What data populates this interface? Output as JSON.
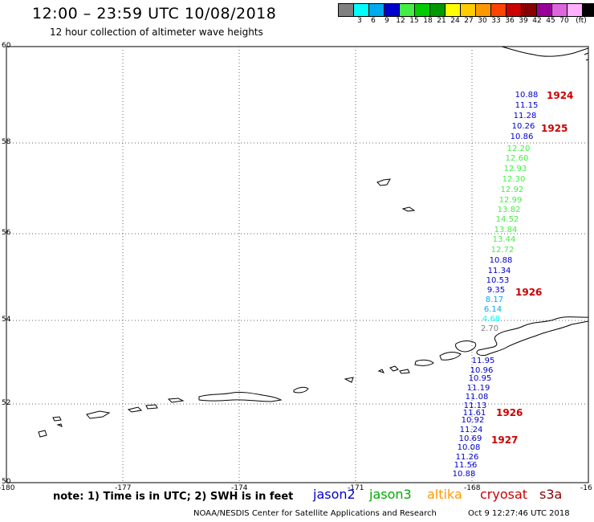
{
  "header": {
    "title": "12:00 – 23:59 UTC 10/08/2018",
    "subtitle": "12 hour collection of altimeter wave heights"
  },
  "colorbar": {
    "swatches": [
      "#808080",
      "#00ffff",
      "#00aaee",
      "#0000cc",
      "#44ee44",
      "#00cc00",
      "#009900",
      "#ffff00",
      "#ffcc00",
      "#ff9900",
      "#ff4400",
      "#cc0000",
      "#880000",
      "#990099",
      "#dd66dd",
      "#ffb0ff",
      "#000000"
    ],
    "labels": [
      "3",
      "6",
      "9",
      "12",
      "15",
      "18",
      "21",
      "24",
      "27",
      "30",
      "33",
      "36",
      "39",
      "42",
      "45",
      "70",
      "(ft)"
    ]
  },
  "map": {
    "lon_ticks": [
      "-180",
      "-177",
      "-174",
      "-171",
      "-168",
      "-16"
    ],
    "lat_ticks": [
      "60",
      "58",
      "56",
      "54",
      "52",
      "50"
    ],
    "colors": {
      "jason2": "#0000cc",
      "jason3": "#00aa00",
      "altika": "#ff9900",
      "cryosat": "#cc0000",
      "s3a": "#880000",
      "coast": "#000000",
      "grid": "#666666"
    }
  },
  "track_readings": [
    {
      "v": "10.88",
      "c": "#0000cc"
    },
    {
      "v": "11.15",
      "c": "#0000cc"
    },
    {
      "v": "11.28",
      "c": "#0000cc"
    },
    {
      "v": "10.26",
      "c": "#0000cc"
    },
    {
      "v": "10.86",
      "c": "#0000cc"
    },
    {
      "v": "12.20",
      "c": "#44ee44"
    },
    {
      "v": "12.60",
      "c": "#44ee44"
    },
    {
      "v": "12.93",
      "c": "#44ee44"
    },
    {
      "v": "12.30",
      "c": "#44ee44"
    },
    {
      "v": "12.92",
      "c": "#44ee44"
    },
    {
      "v": "12.99",
      "c": "#44ee44"
    },
    {
      "v": "13.82",
      "c": "#44ee44"
    },
    {
      "v": "14.52",
      "c": "#44ee44"
    },
    {
      "v": "13.84",
      "c": "#44ee44"
    },
    {
      "v": "13.44",
      "c": "#44ee44"
    },
    {
      "v": "12.72",
      "c": "#44ee44"
    },
    {
      "v": "10.88",
      "c": "#0000cc"
    },
    {
      "v": "11.34",
      "c": "#0000cc"
    },
    {
      "v": "10.53",
      "c": "#0000cc"
    },
    {
      "v": "9.35",
      "c": "#0000cc"
    },
    {
      "v": "8.17",
      "c": "#00aaee"
    },
    {
      "v": "6.14",
      "c": "#00aaee"
    },
    {
      "v": "4.68",
      "c": "#00ffff"
    },
    {
      "v": "2.70",
      "c": "#808080"
    },
    {
      "v": "11.95",
      "c": "#0000cc"
    },
    {
      "v": "10.96",
      "c": "#0000cc"
    },
    {
      "v": "10.95",
      "c": "#0000cc"
    },
    {
      "v": "11.19",
      "c": "#0000cc"
    },
    {
      "v": "11.08",
      "c": "#0000cc"
    },
    {
      "v": "11.13",
      "c": "#0000cc"
    },
    {
      "v": "11.61",
      "c": "#0000cc"
    },
    {
      "v": "10.92",
      "c": "#0000cc"
    },
    {
      "v": "11.24",
      "c": "#0000cc"
    },
    {
      "v": "10.69",
      "c": "#0000cc"
    },
    {
      "v": "10.08",
      "c": "#0000cc"
    },
    {
      "v": "11.26",
      "c": "#0000cc"
    },
    {
      "v": "11.56",
      "c": "#0000cc"
    },
    {
      "v": "10.88",
      "c": "#0000cc"
    }
  ],
  "time_labels": [
    "1924",
    "1925",
    "1926",
    "1926",
    "1927"
  ],
  "footer": {
    "note": "note: 1) Time is in UTC; 2) SWH is in feet",
    "legend": [
      "jason2",
      "jason3",
      "altika",
      "cryosat",
      "s3a"
    ],
    "credit": "NOAA/NESDIS Center for Satellite Applications and Research",
    "timestamp": "Oct  9 12:27:46 UTC 2018"
  }
}
